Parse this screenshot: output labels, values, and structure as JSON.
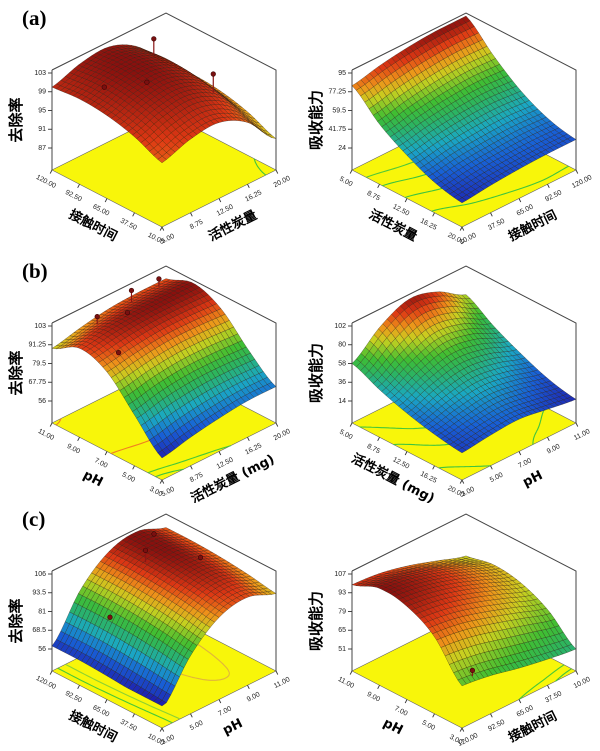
{
  "figure": {
    "background": "#ffffff"
  },
  "chart_data": {
    "type": "3d-surface",
    "panels": [
      {
        "label": "(a)",
        "plots": [
          0,
          1
        ]
      },
      {
        "label": "(b)",
        "plots": [
          2,
          3
        ]
      },
      {
        "label": "(c)",
        "plots": [
          4,
          5
        ]
      }
    ],
    "style": {
      "floor_color": "#f8f60a",
      "frame_color": "#444444",
      "mesh_line_color": "rgba(40,28,14,0.55)",
      "design_point_color": "#7a1010",
      "colormap": "blue-green-yellow-red rainbow"
    },
    "plots": [
      {
        "name": "removal-rate-vs-contact-time-and-carbon",
        "z_label": "去除率",
        "z_ticks": [
          "103",
          "99",
          "95",
          "91",
          "87"
        ],
        "z_range": [
          87,
          103
        ],
        "left_axis": {
          "label": "接触时间",
          "ticks": [
            "120.00",
            "92.50",
            "65.00",
            "37.50",
            "10.00"
          ]
        },
        "right_axis": {
          "label": "活性炭量",
          "ticks": [
            "5.00",
            "8.75",
            "12.50",
            "16.25",
            "20.00"
          ]
        },
        "color_domain": [
          0.68,
          1.0
        ],
        "grid": [
          [
            100,
            102,
            102.5,
            99.5,
            93
          ],
          [
            100.5,
            102.5,
            103,
            100,
            93.5
          ],
          [
            100,
            102,
            102.5,
            99.5,
            93
          ],
          [
            98.5,
            100.5,
            101,
            98,
            91.5
          ],
          [
            96,
            98,
            98.5,
            95.5,
            89
          ]
        ],
        "contours": [
          {
            "z": 91,
            "color": "#3ec43e"
          }
        ],
        "design_points": [
          {
            "u": 0.2,
            "v": 0.7,
            "dw": 0.14
          },
          {
            "u": 0.5,
            "v": 0.35,
            "dw": 0
          },
          {
            "u": 0.32,
            "v": 0.15,
            "dw": 0
          },
          {
            "u": 0.72,
            "v": 0.72,
            "dw": 0.17
          }
        ]
      },
      {
        "name": "absorption-capacity-vs-carbon-and-contact-time",
        "z_label": "吸收能力",
        "z_ticks": [
          "95",
          "77.25",
          "59.5",
          "41.75",
          "24"
        ],
        "z_range": [
          24,
          95
        ],
        "left_axis": {
          "label": "活性炭量",
          "ticks": [
            "5.00",
            "8.75",
            "12.50",
            "16.25",
            "20.00"
          ]
        },
        "right_axis": {
          "label": "接触时间",
          "ticks": [
            "10.00",
            "37.50",
            "65.00",
            "92.50",
            "120.00"
          ]
        },
        "color_domain": [
          0,
          1
        ],
        "grid": [
          [
            83,
            89,
            93,
            95,
            95
          ],
          [
            60,
            66,
            70,
            72,
            71
          ],
          [
            44,
            49,
            52,
            53,
            51
          ],
          [
            32,
            36,
            38,
            39,
            38
          ],
          [
            26,
            29,
            31,
            32,
            32
          ]
        ],
        "contours": [
          {
            "z": 72,
            "color": "#50c838"
          },
          {
            "z": 58,
            "color": "#3ec43e"
          },
          {
            "z": 45,
            "color": "#3ec43e"
          },
          {
            "z": 33,
            "color": "#3ec43e"
          }
        ],
        "design_points": []
      },
      {
        "name": "removal-rate-vs-ph-and-carbon",
        "z_label": "去除率",
        "z_ticks": [
          "103",
          "91.25",
          "79.5",
          "67.75",
          "56"
        ],
        "z_range": [
          56,
          103
        ],
        "left_axis": {
          "label": "pH",
          "ticks": [
            "11.00",
            "9.00",
            "7.00",
            "5.00",
            "3.00"
          ]
        },
        "right_axis": {
          "label": "活性炭量 (mg)",
          "ticks": [
            "5.00",
            "8.75",
            "12.50",
            "16.25",
            "20.00"
          ]
        },
        "color_domain": [
          0,
          1
        ],
        "grid": [
          [
            89,
            93,
            96,
            97,
            97
          ],
          [
            98,
            101,
            102.5,
            103,
            103
          ],
          [
            92,
            95,
            97,
            97,
            96
          ],
          [
            74,
            78,
            80,
            80,
            79
          ],
          [
            56,
            60,
            63,
            65,
            65
          ]
        ],
        "contours": [
          {
            "z": 90,
            "color": "#f08020"
          },
          {
            "z": 64,
            "color": "#46c838"
          },
          {
            "z": 59,
            "color": "#3ec43e"
          }
        ],
        "design_points": [
          {
            "u": 0.1,
            "v": 0.3,
            "dw": 0.06
          },
          {
            "u": 0.08,
            "v": 0.62,
            "dw": 0.1
          },
          {
            "u": 0.22,
            "v": 0.45,
            "dw": 0
          },
          {
            "u": 0.45,
            "v": 0.15,
            "dw": 0
          },
          {
            "u": 0.06,
            "v": 0.88,
            "dw": 0.06
          }
        ]
      },
      {
        "name": "absorption-capacity-vs-carbon-and-ph",
        "z_label": "吸收能力",
        "z_ticks": [
          "102",
          "80",
          "58",
          "36",
          "14"
        ],
        "z_range": [
          14,
          102
        ],
        "left_axis": {
          "label": "活性炭量 (mg)",
          "ticks": [
            "5.00",
            "8.75",
            "12.50",
            "16.25",
            "20.00"
          ]
        },
        "right_axis": {
          "label": "pH",
          "ticks": [
            "3.00",
            "5.00",
            "7.00",
            "9.00",
            "11.00"
          ]
        },
        "color_domain": [
          0,
          1
        ],
        "grid": [
          [
            58,
            85,
            100,
            92,
            72
          ],
          [
            44,
            62,
            74,
            68,
            52
          ],
          [
            33,
            45,
            52,
            47,
            36
          ],
          [
            25,
            32,
            36,
            31,
            23
          ],
          [
            20,
            24,
            26,
            21,
            16
          ]
        ],
        "contours": [
          {
            "z": 55,
            "color": "#46c838"
          },
          {
            "z": 38,
            "color": "#3ec43e"
          },
          {
            "z": 24,
            "color": "#3ec43e"
          }
        ],
        "design_points": []
      },
      {
        "name": "removal-rate-vs-contact-time-and-ph",
        "z_label": "去除率",
        "z_ticks": [
          "106",
          "93.5",
          "81",
          "68.5",
          "56"
        ],
        "z_range": [
          56,
          106
        ],
        "left_axis": {
          "label": "接触时间",
          "ticks": [
            "120.00",
            "92.50",
            "65.00",
            "37.50",
            "10.00"
          ]
        },
        "right_axis": {
          "label": "pH",
          "ticks": [
            "3.00",
            "5.00",
            "7.00",
            "9.00",
            "11.00"
          ]
        },
        "color_domain": [
          0,
          1
        ],
        "grid": [
          [
            58,
            86,
            102,
            106,
            99
          ],
          [
            58,
            86,
            102,
            106,
            99
          ],
          [
            57,
            85,
            101,
            105,
            98
          ],
          [
            55.5,
            83,
            99,
            103,
            96
          ],
          [
            54,
            80,
            96,
            100,
            93
          ]
        ],
        "contours": [
          {
            "z": 102,
            "color": "#e0b43c"
          },
          {
            "z": 70,
            "color": "#8cd232"
          },
          {
            "z": 62,
            "color": "#46c838"
          }
        ],
        "design_points": [
          {
            "u": 0.28,
            "v": 0.55,
            "dw": 0.1
          },
          {
            "u": 0.15,
            "v": 0.75,
            "dw": 0.04
          },
          {
            "u": 0.5,
            "v": 0.82,
            "dw": 0
          },
          {
            "u": 0.32,
            "v": 0.2,
            "dw": 0
          }
        ]
      },
      {
        "name": "absorption-capacity-vs-ph-and-contact-time",
        "z_label": "吸收能力",
        "z_ticks": [
          "107",
          "93",
          "79",
          "65",
          "51"
        ],
        "z_range": [
          51,
          107
        ],
        "left_axis": {
          "label": "pH",
          "ticks": [
            "11.00",
            "9.00",
            "7.00",
            "5.00",
            "3.00"
          ]
        },
        "right_axis": {
          "label": "接触时间",
          "ticks": [
            "120.00",
            "92.50",
            "65.00",
            "37.50",
            "10.00"
          ]
        },
        "color_domain": [
          0.42,
          1.0
        ],
        "grid": [
          [
            99,
            97,
            92,
            85,
            78
          ],
          [
            107,
            104,
            98,
            90,
            82
          ],
          [
            104,
            101,
            95,
            87,
            79
          ],
          [
            92,
            89,
            83,
            76,
            69
          ],
          [
            66,
            63,
            58,
            54,
            51
          ]
        ],
        "contours": [
          {
            "z": 58,
            "color": "#46c838"
          },
          {
            "z": 53,
            "color": "#3ec43e"
          }
        ],
        "design_points": [
          {
            "u": 0.97,
            "v": 0.12,
            "dw": 0.04
          }
        ]
      }
    ]
  }
}
